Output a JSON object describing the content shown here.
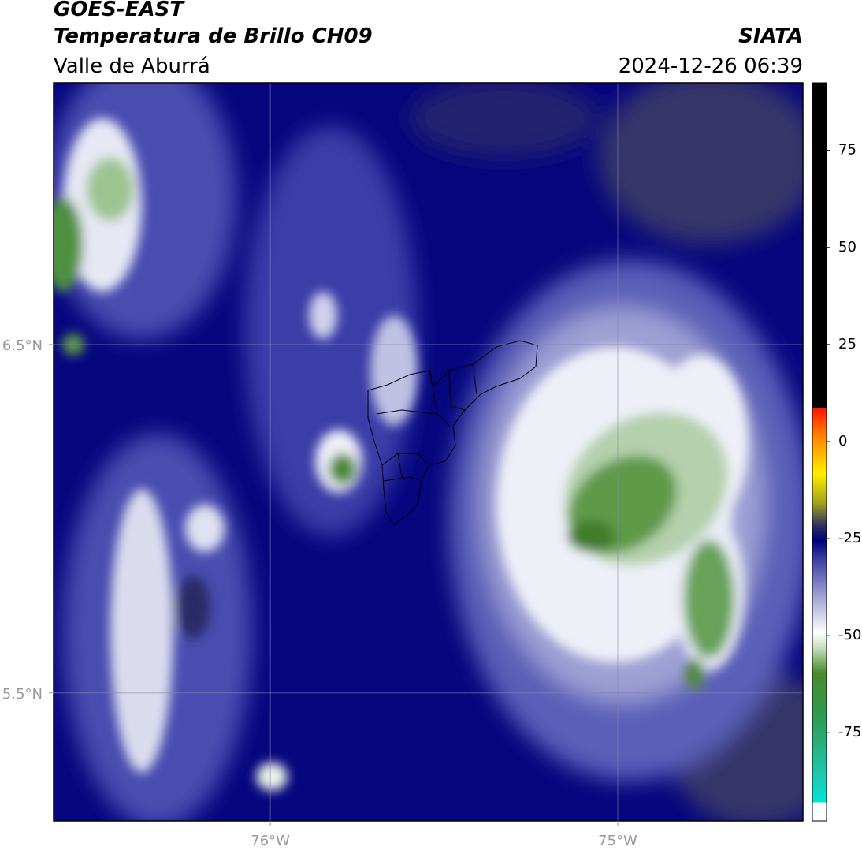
{
  "map": {
    "title_left": [
      "GOES-EAST",
      "Temperatura de Brillo CH09",
      "Valle de Aburrá"
    ],
    "title_right": [
      "SIATA",
      "2024-12-26 06:39"
    ],
    "lonlim": [
      -76.624,
      -74.467
    ],
    "latlim": [
      5.133,
      7.251
    ],
    "lon_ticks": [
      {
        "value": -76,
        "label": "76°W"
      },
      {
        "value": -75,
        "label": "75°W"
      }
    ],
    "lat_ticks": [
      {
        "value": 6.5,
        "label": "6.5°N"
      },
      {
        "value": 5.5,
        "label": "5.5°N"
      }
    ],
    "colorbar": {
      "lim": [
        -97.7,
        92.4
      ],
      "ticks": [
        75,
        50,
        25,
        0,
        -25,
        -50,
        -75
      ]
    }
  }
}
